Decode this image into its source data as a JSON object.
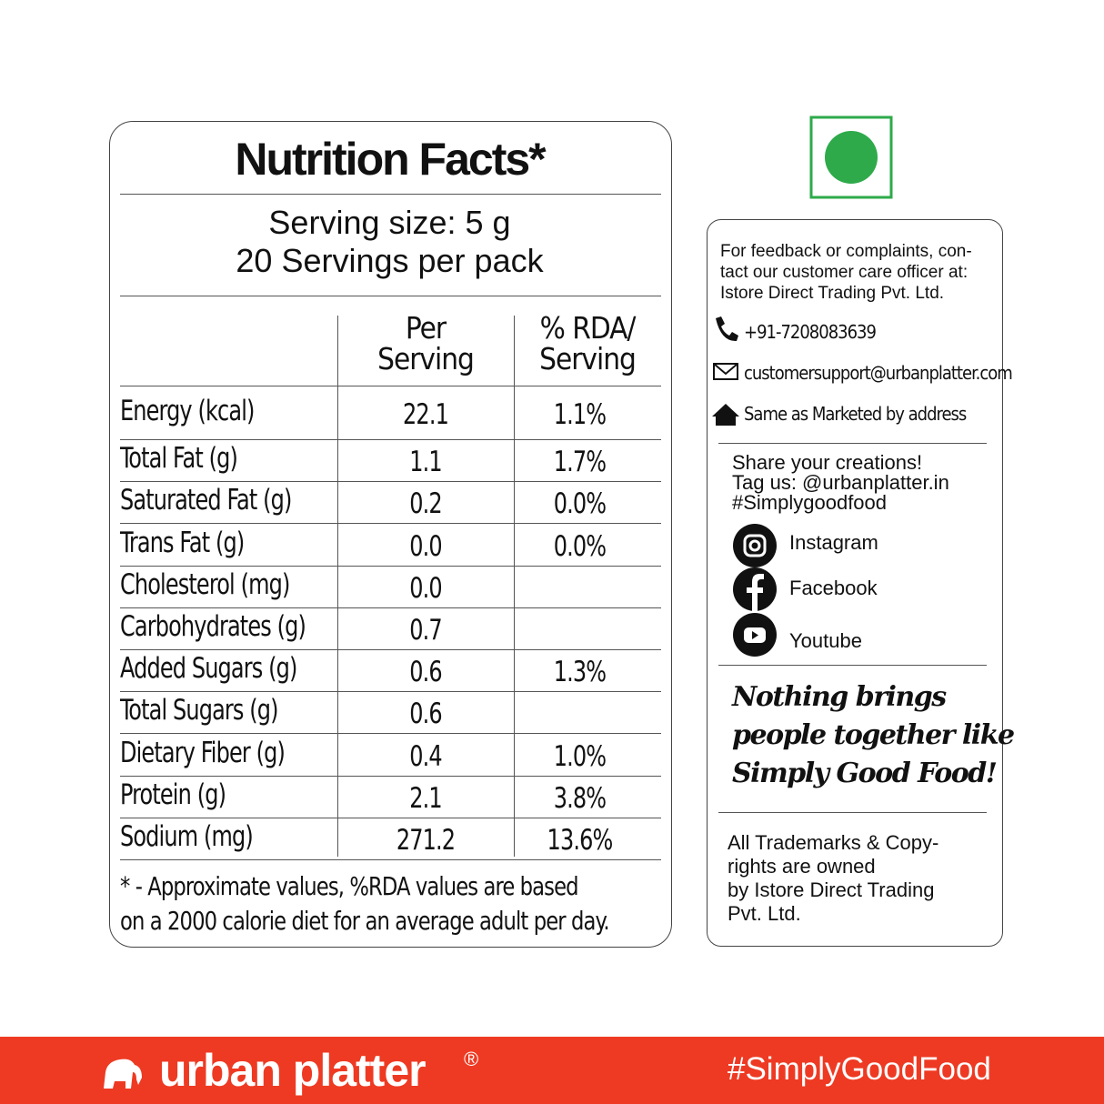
{
  "nutrition": {
    "title": "Nutrition Facts*",
    "serving_size": "Serving size: 5 g",
    "servings": "20 Servings per pack",
    "headers": [
      "Per\nServing",
      "% RDA/\nServing"
    ],
    "rows": [
      [
        "Energy (kcal)",
        "22.1",
        "1.1%"
      ],
      [
        "Total Fat (g)",
        "1.1",
        "1.7%"
      ],
      [
        "Saturated Fat (g)",
        "0.2",
        "0.0%"
      ],
      [
        "Trans Fat (g)",
        "0.0",
        "0.0%"
      ],
      [
        "Cholesterol (mg)",
        "0.0",
        null
      ],
      [
        "Carbohydrates (g)",
        "0.7",
        null
      ],
      [
        "Added Sugars (g)",
        "0.6",
        "1.3%"
      ],
      [
        "Total Sugars (g)",
        "0.6",
        null
      ],
      [
        "Dietary Fiber (g)",
        "0.4",
        "1.0%"
      ],
      [
        "Protein (g)",
        "2.1",
        "3.8%"
      ],
      [
        "Sodium (mg)",
        "271.2",
        "13.6%"
      ]
    ],
    "footnote": [
      "* - Approximate values, %RDA values are based",
      "on a 2000 calorie diet for an average adult per day."
    ]
  },
  "contact": {
    "intro": [
      "For feedback or complaints, con-",
      "tact our customer care officer at:",
      "Istore Direct Trading Pvt. Ltd."
    ],
    "phone": "+91-7208083639",
    "email": "customersupport@urbanplatter.com",
    "address": "Same as Marketed by address"
  },
  "social": {
    "share": [
      "Share your creations!",
      "Tag us: @urbanplatter.in",
      "#Simplygoodfood"
    ],
    "links": [
      "Instagram",
      "Facebook",
      "Youtube"
    ]
  },
  "slogan": [
    "Nothing brings",
    "people together like",
    "Simply Good Food!"
  ],
  "trademark": [
    "All Trademarks & Copy-",
    "rights are owned",
    "by Istore Direct Trading",
    "Pvt. Ltd."
  ],
  "footer": {
    "brand": "urban platter",
    "registered": "®",
    "hashtag": "#SimplyGoodFood"
  }
}
